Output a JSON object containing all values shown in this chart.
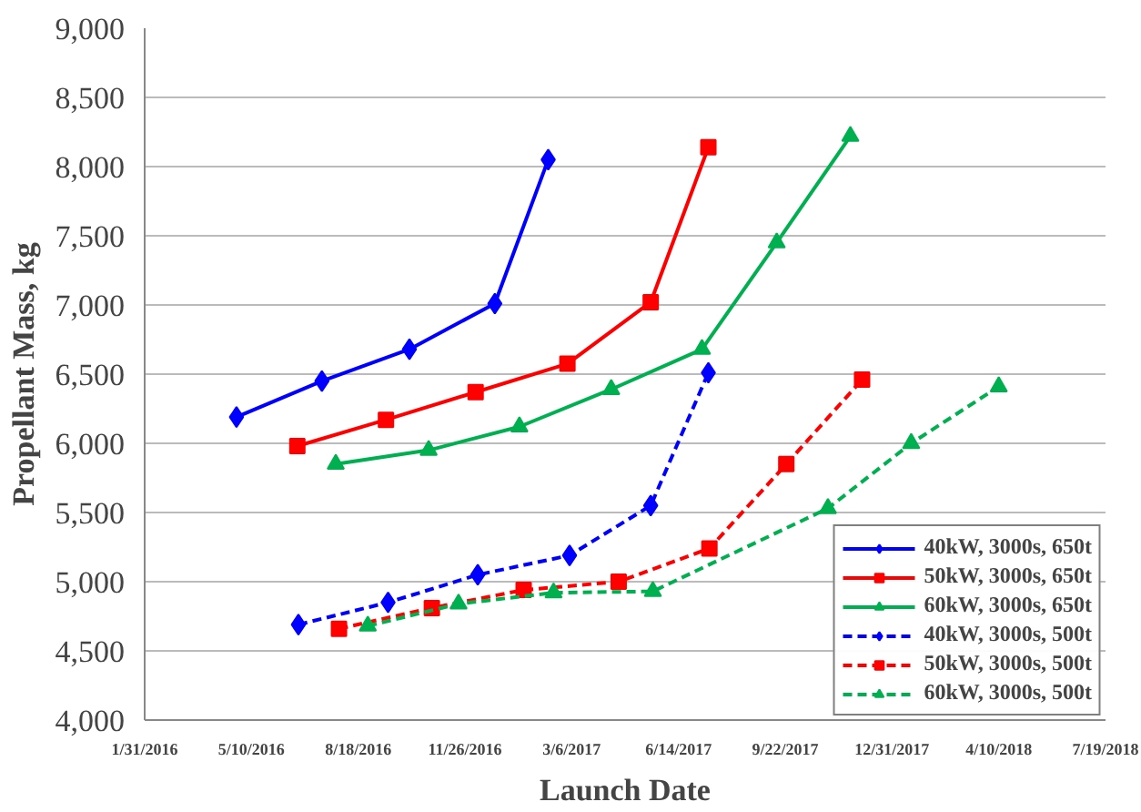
{
  "chart_data": {
    "type": "line",
    "xlabel": "Launch Date",
    "ylabel": "Propellant Mass, kg",
    "xlim": [
      "2016-01-31",
      "2018-07-19"
    ],
    "xticks": [
      {
        "value": "2016-01-31",
        "label": "1/31/2016"
      },
      {
        "value": "2016-05-10",
        "label": "5/10/2016"
      },
      {
        "value": "2016-08-18",
        "label": "8/18/2016"
      },
      {
        "value": "2016-11-26",
        "label": "11/26/2016"
      },
      {
        "value": "2017-03-06",
        "label": "3/6/2017"
      },
      {
        "value": "2017-06-14",
        "label": "6/14/2017"
      },
      {
        "value": "2017-09-22",
        "label": "9/22/2017"
      },
      {
        "value": "2017-12-31",
        "label": "12/31/2017"
      },
      {
        "value": "2018-04-10",
        "label": "4/10/2018"
      },
      {
        "value": "2018-07-19",
        "label": "7/19/2018"
      }
    ],
    "ylim": [
      4000,
      9000
    ],
    "yticks": [
      {
        "value": 4000,
        "label": "4,000"
      },
      {
        "value": 4500,
        "label": "4,500"
      },
      {
        "value": 5000,
        "label": "5,000"
      },
      {
        "value": 5500,
        "label": "5,500"
      },
      {
        "value": 6000,
        "label": "6,000"
      },
      {
        "value": 6500,
        "label": "6,500"
      },
      {
        "value": 7000,
        "label": "7,000"
      },
      {
        "value": 7500,
        "label": "7,500"
      },
      {
        "value": 8000,
        "label": "8,000"
      },
      {
        "value": 8500,
        "label": "8,500"
      },
      {
        "value": 9000,
        "label": "9,000"
      }
    ],
    "grid": "y",
    "legend": "bottom right",
    "series": [
      {
        "name": "40kW, 3000s, 650t",
        "color": "#0000ff",
        "marker": "diamond",
        "line_style": "solid",
        "x": [
          "2016-04-26",
          "2016-07-15",
          "2016-10-05",
          "2016-12-24",
          "2017-02-12"
        ],
        "values": [
          6190,
          6450,
          6680,
          7010,
          8050
        ]
      },
      {
        "name": "50kW, 3000s, 650t",
        "color": "#ff0000",
        "marker": "square",
        "line_style": "solid",
        "x": [
          "2016-06-22",
          "2016-09-13",
          "2016-12-06",
          "2017-03-02",
          "2017-05-19",
          "2017-07-12"
        ],
        "values": [
          5980,
          6170,
          6370,
          6575,
          7020,
          8140
        ]
      },
      {
        "name": "60kW, 3000s, 650t",
        "color": "#00b050",
        "marker": "triangle",
        "line_style": "solid",
        "x": [
          "2016-07-28",
          "2016-10-23",
          "2017-01-16",
          "2017-04-12",
          "2017-07-06",
          "2017-09-14",
          "2017-11-22"
        ],
        "values": [
          5850,
          5950,
          6120,
          6390,
          6680,
          7450,
          8220
        ]
      },
      {
        "name": "40kW, 3000s, 500t",
        "color": "#0000ff",
        "marker": "diamond",
        "line_style": "dashed",
        "x": [
          "2016-06-23",
          "2016-09-15",
          "2016-12-08",
          "2017-03-04",
          "2017-05-19",
          "2017-07-12"
        ],
        "values": [
          4690,
          4850,
          5050,
          5190,
          5550,
          6510
        ]
      },
      {
        "name": "50kW, 3000s, 500t",
        "color": "#ff0000",
        "marker": "square",
        "line_style": "dashed",
        "x": [
          "2016-07-31",
          "2016-10-26",
          "2017-01-20",
          "2017-04-19",
          "2017-07-13",
          "2017-09-23",
          "2017-12-03"
        ],
        "values": [
          4660,
          4810,
          4940,
          5000,
          5240,
          5850,
          6460
        ]
      },
      {
        "name": "60kW, 3000s, 500t",
        "color": "#00b050",
        "marker": "triangle",
        "line_style": "dashed",
        "x": [
          "2016-08-27",
          "2016-11-20",
          "2017-02-17",
          "2017-05-21",
          "2017-11-01",
          "2018-01-18",
          "2018-04-10"
        ],
        "values": [
          4680,
          4840,
          4920,
          4930,
          5530,
          6000,
          6410
        ]
      }
    ]
  }
}
